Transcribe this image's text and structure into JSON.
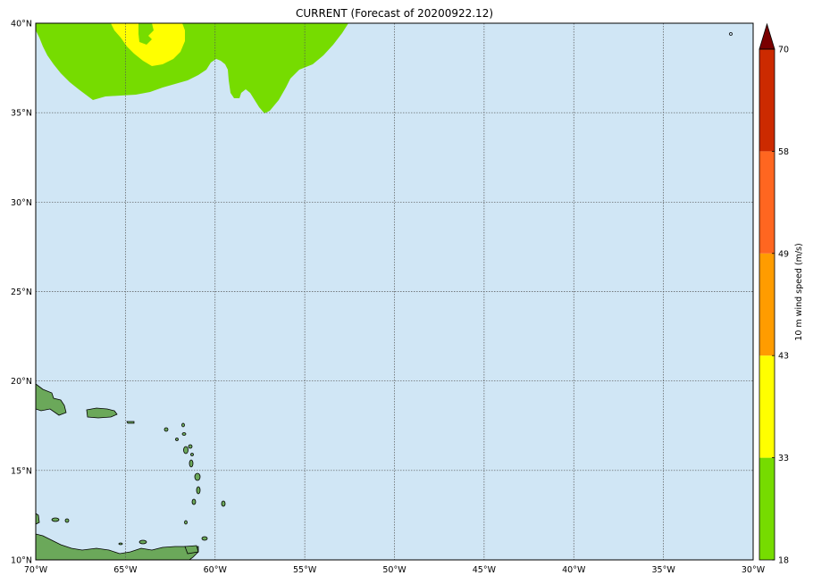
{
  "title": "CURRENT (Forecast of 20200922.12)",
  "map": {
    "ocean_color": "#d0e6f5",
    "lat_labels": [
      "10°N",
      "15°N",
      "20°N",
      "25°N",
      "30°N",
      "35°N",
      "40°N"
    ],
    "lon_labels": [
      "70°W",
      "65°W",
      "60°W",
      "55°W",
      "50°W",
      "45°W",
      "40°W",
      "35°W",
      "30°W"
    ],
    "lat_range": [
      10,
      40
    ],
    "lon_range": [
      -70,
      -30
    ],
    "grid": true
  },
  "colorbar": {
    "label": "10 m wind speed (m/s)",
    "ticks": [
      "18",
      "33",
      "43",
      "49",
      "58",
      "70"
    ],
    "colors": [
      "#76dc00",
      "#ffff00",
      "#ff9c00",
      "#ff6620",
      "#cc2a00",
      "#7a0000"
    ],
    "extend": "max"
  }
}
